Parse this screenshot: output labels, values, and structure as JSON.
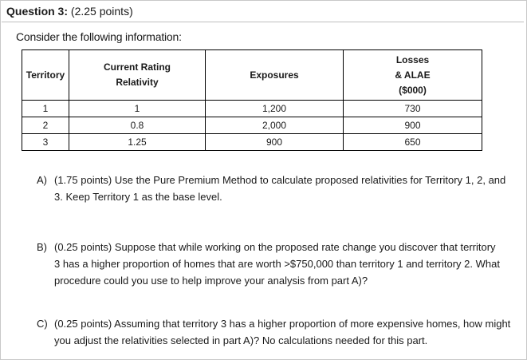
{
  "header": {
    "question_number": "Question 3:",
    "points": "(2.25 points)"
  },
  "intro": "Consider the following information:",
  "table": {
    "headers": {
      "territory": "Territory",
      "relativity_line1": "Current Rating",
      "relativity_line2": "Relativity",
      "exposures": "Exposures",
      "losses_line1": "Losses",
      "losses_line2": "& ALAE",
      "losses_line3": "($000)"
    },
    "rows": [
      {
        "territory": "1",
        "relativity": "1",
        "exposures": "1,200",
        "losses": "730"
      },
      {
        "territory": "2",
        "relativity": "0.8",
        "exposures": "2,000",
        "losses": "900"
      },
      {
        "territory": "3",
        "relativity": "1.25",
        "exposures": "900",
        "losses": "650"
      }
    ]
  },
  "questions": [
    {
      "letter": "A)",
      "text": "(1.75 points) Use the Pure Premium Method to calculate proposed relativities for Territory 1, 2, and 3. Keep Territory 1 as the base level."
    },
    {
      "letter": "B)",
      "text": "(0.25 points) Suppose that while working on the proposed rate change you discover that territory 3 has a higher proportion of homes that are worth >$750,000 than territory 1 and territory 2. What procedure could you use to help improve your analysis from part A)?"
    },
    {
      "letter": "C)",
      "text": "(0.25 points) Assuming that territory 3 has a higher proportion of more expensive homes, how might you adjust the relativities selected in part A)? No calculations needed for this part."
    }
  ]
}
